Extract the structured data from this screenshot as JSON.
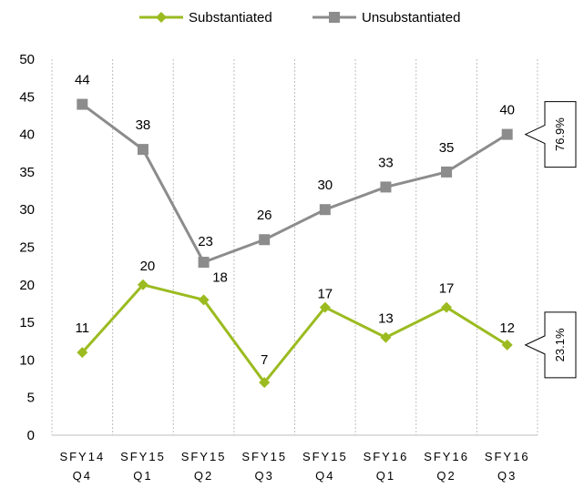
{
  "chart_data": {
    "type": "line",
    "categories": [
      [
        "SFY14",
        "Q4"
      ],
      [
        "SFY15",
        "Q1"
      ],
      [
        "SFY15",
        "Q2"
      ],
      [
        "SFY15",
        "Q3"
      ],
      [
        "SFY15",
        "Q4"
      ],
      [
        "SFY16",
        "Q1"
      ],
      [
        "SFY16",
        "Q2"
      ],
      [
        "SFY16",
        "Q3"
      ]
    ],
    "series": [
      {
        "name": "Substantiated",
        "color": "#9bbb20",
        "marker": "diamond",
        "values": [
          11,
          20,
          18,
          7,
          17,
          13,
          17,
          12
        ],
        "labels": [
          "11",
          "20",
          "18",
          "7",
          "17",
          "13",
          "17",
          "12"
        ],
        "end_callout": "23.1%"
      },
      {
        "name": "Unsubstantiated",
        "color": "#8c8c8c",
        "marker": "square",
        "values": [
          44,
          38,
          23,
          26,
          30,
          33,
          35,
          40
        ],
        "labels": [
          "44",
          "38",
          "23",
          "26",
          "30",
          "33",
          "35",
          "40"
        ],
        "end_callout": "76.9%"
      }
    ],
    "yticks": [
      "0",
      "5",
      "10",
      "15",
      "20",
      "25",
      "30",
      "35",
      "40",
      "45",
      "50"
    ],
    "ylim": [
      0,
      50
    ],
    "grid": "vertical-dotted",
    "legend_position": "top"
  }
}
